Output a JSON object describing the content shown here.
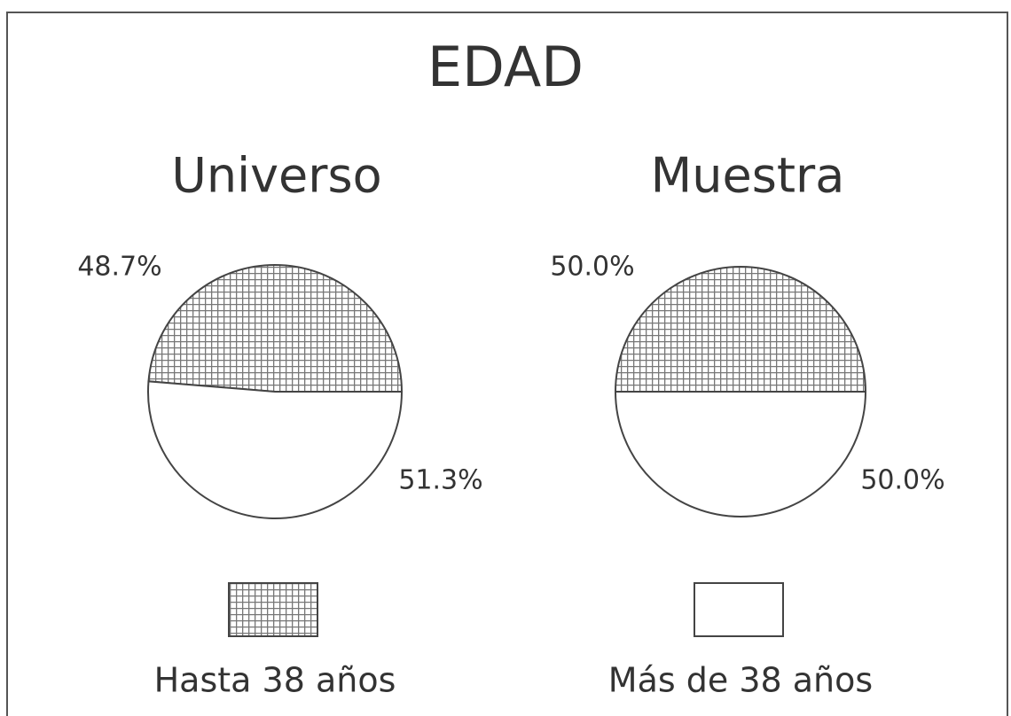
{
  "title": "EDAD",
  "chart_data": [
    {
      "type": "pie",
      "title": "Universo",
      "categories": [
        "Hasta 38 años",
        "Más de 38 años"
      ],
      "values": [
        48.7,
        51.3
      ],
      "value_labels": [
        "48.7%",
        "51.3%"
      ],
      "fills": [
        "crosshatch",
        "white"
      ]
    },
    {
      "type": "pie",
      "title": "Muestra",
      "categories": [
        "Hasta 38 años",
        "Más de 38 años"
      ],
      "values": [
        50.0,
        50.0
      ],
      "value_labels": [
        "50.0%",
        "50.0%"
      ],
      "fills": [
        "crosshatch",
        "white"
      ]
    }
  ]
}
